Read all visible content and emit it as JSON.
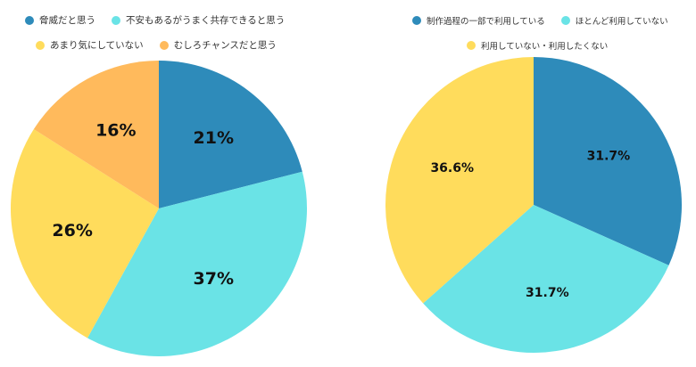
{
  "chart_data": [
    {
      "type": "pie",
      "title": "",
      "legend_position": "top",
      "categories": [
        "脅威だと思う",
        "不安もあるがうまく共存できると思う",
        "あまり気にしていない",
        "むしろチャンスだと思う"
      ],
      "values": [
        21,
        37,
        26,
        16
      ],
      "labels": [
        "21%",
        "37%",
        "26%",
        "16%"
      ],
      "colors": [
        "#2e8bba",
        "#6ae3e6",
        "#ffdc5c",
        "#ffba5c"
      ],
      "start_angle": "12 o'clock, clockwise"
    },
    {
      "type": "pie",
      "title": "",
      "legend_position": "top",
      "categories": [
        "制作過程の一部で利用している",
        "ほとんど利用していない",
        "利用していない・利用したくない"
      ],
      "values": [
        31.7,
        31.7,
        36.6
      ],
      "labels": [
        "31.7%",
        "31.7%",
        "36.6%"
      ],
      "colors": [
        "#2e8bba",
        "#6ae3e6",
        "#ffdc5c"
      ],
      "start_angle": "12 o'clock, clockwise"
    }
  ],
  "left_legend": {
    "row1": [
      {
        "label": "脅威だと思う",
        "color": "#2e8bba"
      },
      {
        "label": "不安もあるがうまく共存できると思う",
        "color": "#6ae3e6"
      }
    ],
    "row2": [
      {
        "label": "あまり気にしていない",
        "color": "#ffdc5c"
      },
      {
        "label": "むしろチャンスだと思う",
        "color": "#ffba5c"
      }
    ]
  },
  "right_legend": {
    "row1": [
      {
        "label": "制作過程の一部で利用している",
        "color": "#2e8bba"
      },
      {
        "label": "ほとんど利用していない",
        "color": "#6ae3e6"
      }
    ],
    "row2": [
      {
        "label": "利用していない・利用したくない",
        "color": "#ffdc5c"
      }
    ]
  }
}
